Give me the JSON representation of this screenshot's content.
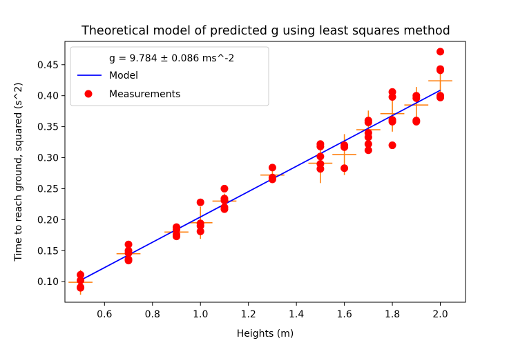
{
  "chart_data": {
    "type": "scatter",
    "title": "Theoretical model of predicted g using least squares method",
    "xlabel": "Heights (m)",
    "ylabel": "Time to reach ground, squared (s^2)",
    "xlim": [
      0.435,
      2.105
    ],
    "ylim": [
      0.0668,
      0.4876
    ],
    "x_ticks": [
      0.6,
      0.8,
      1.0,
      1.2,
      1.4,
      1.6,
      1.8,
      2.0
    ],
    "x_tick_labels": [
      "0.6",
      "0.8",
      "1.0",
      "1.2",
      "1.4",
      "1.6",
      "1.8",
      "2.0"
    ],
    "y_ticks": [
      0.1,
      0.15,
      0.2,
      0.25,
      0.3,
      0.35,
      0.4,
      0.45
    ],
    "y_tick_labels": [
      "0.10",
      "0.15",
      "0.20",
      "0.25",
      "0.30",
      "0.35",
      "0.40",
      "0.45"
    ],
    "grid": false,
    "legend_placement": "upper-left",
    "legend": [
      {
        "label": "g = 9.784 ± 0.086 ms^-2",
        "marker": "none"
      },
      {
        "label": "Model",
        "marker": "line",
        "color": "#0000ff"
      },
      {
        "label": "Measurements",
        "marker": "dot",
        "color": "#ff0000"
      }
    ],
    "model": {
      "name": "Model",
      "color": "#0000ff",
      "x": [
        0.5,
        2.0
      ],
      "y": [
        0.1022,
        0.4088
      ]
    },
    "measurements": {
      "name": "Measurements",
      "color": "#ff0000",
      "points": [
        {
          "x": 0.5,
          "y": 0.111
        },
        {
          "x": 0.5,
          "y": 0.102
        },
        {
          "x": 0.5,
          "y": 0.091
        },
        {
          "x": 0.5,
          "y": 0.09
        },
        {
          "x": 0.7,
          "y": 0.16
        },
        {
          "x": 0.7,
          "y": 0.15
        },
        {
          "x": 0.7,
          "y": 0.146
        },
        {
          "x": 0.7,
          "y": 0.136
        },
        {
          "x": 0.7,
          "y": 0.134
        },
        {
          "x": 0.9,
          "y": 0.188
        },
        {
          "x": 0.9,
          "y": 0.184
        },
        {
          "x": 0.9,
          "y": 0.176
        },
        {
          "x": 0.9,
          "y": 0.173
        },
        {
          "x": 1.0,
          "y": 0.228
        },
        {
          "x": 1.0,
          "y": 0.194
        },
        {
          "x": 1.0,
          "y": 0.19
        },
        {
          "x": 1.0,
          "y": 0.181
        },
        {
          "x": 1.1,
          "y": 0.25
        },
        {
          "x": 1.1,
          "y": 0.234
        },
        {
          "x": 1.1,
          "y": 0.231
        },
        {
          "x": 1.1,
          "y": 0.22
        },
        {
          "x": 1.1,
          "y": 0.217
        },
        {
          "x": 1.3,
          "y": 0.284
        },
        {
          "x": 1.3,
          "y": 0.268
        },
        {
          "x": 1.3,
          "y": 0.265
        },
        {
          "x": 1.5,
          "y": 0.322
        },
        {
          "x": 1.5,
          "y": 0.318
        },
        {
          "x": 1.5,
          "y": 0.302
        },
        {
          "x": 1.5,
          "y": 0.29
        },
        {
          "x": 1.5,
          "y": 0.282
        },
        {
          "x": 1.6,
          "y": 0.32
        },
        {
          "x": 1.6,
          "y": 0.317
        },
        {
          "x": 1.6,
          "y": 0.283
        },
        {
          "x": 1.7,
          "y": 0.36
        },
        {
          "x": 1.7,
          "y": 0.357
        },
        {
          "x": 1.7,
          "y": 0.34
        },
        {
          "x": 1.7,
          "y": 0.333
        },
        {
          "x": 1.7,
          "y": 0.322
        },
        {
          "x": 1.7,
          "y": 0.312
        },
        {
          "x": 1.8,
          "y": 0.406
        },
        {
          "x": 1.8,
          "y": 0.398
        },
        {
          "x": 1.8,
          "y": 0.361
        },
        {
          "x": 1.8,
          "y": 0.358
        },
        {
          "x": 1.8,
          "y": 0.32
        },
        {
          "x": 1.9,
          "y": 0.4
        },
        {
          "x": 1.9,
          "y": 0.396
        },
        {
          "x": 1.9,
          "y": 0.36
        },
        {
          "x": 1.9,
          "y": 0.358
        },
        {
          "x": 2.0,
          "y": 0.471
        },
        {
          "x": 2.0,
          "y": 0.443
        },
        {
          "x": 2.0,
          "y": 0.441
        },
        {
          "x": 2.0,
          "y": 0.4
        },
        {
          "x": 2.0,
          "y": 0.397
        }
      ]
    },
    "error_bars": {
      "color": "#ff7f0e",
      "x_err": 0.05,
      "points": [
        {
          "x": 0.5,
          "y": 0.099,
          "y_err": 0.02
        },
        {
          "x": 0.7,
          "y": 0.145,
          "y_err": 0.014
        },
        {
          "x": 0.9,
          "y": 0.18,
          "y_err": 0.009
        },
        {
          "x": 1.0,
          "y": 0.195,
          "y_err": 0.026
        },
        {
          "x": 1.1,
          "y": 0.23,
          "y_err": 0.012
        },
        {
          "x": 1.3,
          "y": 0.272,
          "y_err": 0.01
        },
        {
          "x": 1.5,
          "y": 0.291,
          "y_err": 0.032
        },
        {
          "x": 1.6,
          "y": 0.305,
          "y_err": 0.033
        },
        {
          "x": 1.7,
          "y": 0.345,
          "y_err": 0.031
        },
        {
          "x": 1.8,
          "y": 0.371,
          "y_err": 0.029
        },
        {
          "x": 1.9,
          "y": 0.385,
          "y_err": 0.029
        },
        {
          "x": 2.0,
          "y": 0.424,
          "y_err": 0.022
        }
      ]
    }
  }
}
